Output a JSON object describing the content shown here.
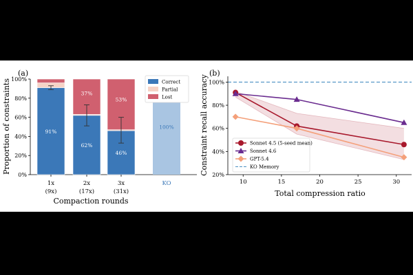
{
  "chart_data": [
    {
      "type": "bar",
      "panel_label": "(a)",
      "title": "",
      "xlabel": "Compaction rounds",
      "ylabel": "Proportion of constraints",
      "ylim": [
        0,
        100
      ],
      "yticks": [
        0,
        20,
        40,
        60,
        80,
        100
      ],
      "ytick_labels": [
        "0%",
        "20%",
        "40%",
        "60%",
        "80%",
        "100%"
      ],
      "stacked": true,
      "grid": false,
      "categories": [
        {
          "line1": "1x",
          "line2": "(9x)"
        },
        {
          "line1": "2x",
          "line2": "(17x)"
        },
        {
          "line1": "3x",
          "line2": "(31x)"
        },
        {
          "line1": "KO",
          "line2": ""
        }
      ],
      "series": [
        {
          "name": "Correct",
          "color": "#3b78b8",
          "values": [
            91,
            62,
            46,
            null
          ]
        },
        {
          "name": "Partial",
          "color": "#f6d3c6",
          "values": [
            5,
            1,
            1,
            null
          ]
        },
        {
          "name": "Lost",
          "color": "#d0606f",
          "values": [
            4,
            37,
            53,
            null
          ]
        }
      ],
      "ko_bar": {
        "value": 100,
        "color": "#a9c5e2",
        "label_color": "#3b78b8"
      },
      "data_labels": [
        {
          "category_index": 0,
          "series": "Correct",
          "text": "91%"
        },
        {
          "category_index": 1,
          "series": "Correct",
          "text": "62%"
        },
        {
          "category_index": 1,
          "series": "Lost",
          "text": "37%"
        },
        {
          "category_index": 2,
          "series": "Correct",
          "text": "46%"
        },
        {
          "category_index": 2,
          "series": "Lost",
          "text": "53%"
        },
        {
          "category_index": 3,
          "series": "KO",
          "text": "100%"
        }
      ],
      "error_bars": [
        {
          "category_index": 0,
          "low": 89,
          "high": 93
        },
        {
          "category_index": 1,
          "low": 51,
          "high": 73
        },
        {
          "category_index": 2,
          "low": 33,
          "high": 60
        }
      ],
      "legend": {
        "position": "top-right",
        "entries": [
          "Correct",
          "Partial",
          "Lost"
        ]
      }
    },
    {
      "type": "line",
      "panel_label": "(b)",
      "title": "",
      "xlabel": "Total compression ratio",
      "ylabel": "Constraint recall accuracy",
      "xlim": [
        8,
        32
      ],
      "ylim": [
        20,
        105
      ],
      "xticks": [
        10,
        15,
        20,
        25,
        30
      ],
      "yticks": [
        20,
        40,
        60,
        80,
        100
      ],
      "ytick_labels": [
        "20%",
        "40%",
        "60%",
        "80%",
        "100%"
      ],
      "grid": false,
      "series": [
        {
          "name": "Sonnet 4.5 (5-seed mean)",
          "color": "#a8182c",
          "marker": "circle",
          "x": [
            9,
            17,
            31
          ],
          "y": [
            91,
            62,
            46
          ],
          "band_low": [
            87,
            55,
            33
          ],
          "band_high": [
            92,
            73,
            60
          ]
        },
        {
          "name": "Sonnet 4.6",
          "color": "#6a2c8f",
          "marker": "triangle",
          "x": [
            9,
            17,
            31
          ],
          "y": [
            90,
            85,
            65
          ]
        },
        {
          "name": "GPT-5.4",
          "color": "#f4a07a",
          "marker": "diamond",
          "x": [
            9,
            17,
            31
          ],
          "y": [
            70,
            60,
            35
          ]
        }
      ],
      "reference_line": {
        "name": "KO Memory",
        "y": 100,
        "color": "#4a90c2",
        "style": "dashed"
      },
      "legend": {
        "position": "bottom-left",
        "entries": [
          "Sonnet 4.5 (5-seed mean)",
          "Sonnet 4.6",
          "GPT-5.4",
          "KO Memory"
        ]
      }
    }
  ]
}
